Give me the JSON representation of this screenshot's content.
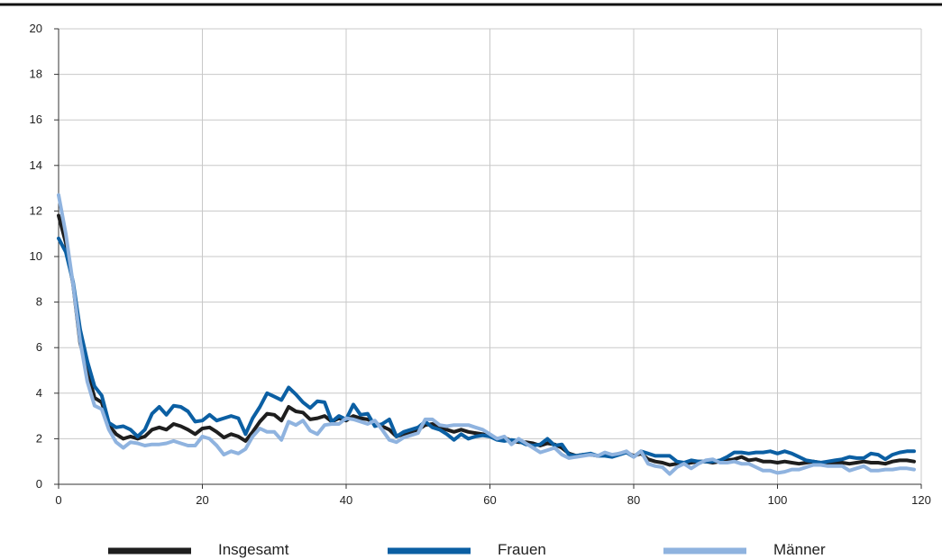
{
  "chart_data": {
    "type": "line",
    "title": "",
    "xlabel": "",
    "ylabel": "",
    "xlim": [
      0,
      120
    ],
    "ylim": [
      0,
      20
    ],
    "x_ticks": [
      "0",
      "20",
      "40",
      "60",
      "80",
      "100",
      "120"
    ],
    "y_ticks": [
      "0",
      "2",
      "4",
      "6",
      "8",
      "10",
      "12",
      "14",
      "16",
      "18",
      "20"
    ],
    "grid": true,
    "legend_position": "bottom",
    "x": [
      0,
      1,
      2,
      3,
      4,
      5,
      6,
      7,
      8,
      9,
      10,
      11,
      12,
      13,
      14,
      15,
      16,
      17,
      18,
      19,
      20,
      21,
      22,
      23,
      24,
      25,
      26,
      27,
      28,
      29,
      30,
      31,
      32,
      33,
      34,
      35,
      36,
      37,
      38,
      39,
      40,
      41,
      42,
      43,
      44,
      45,
      46,
      47,
      48,
      49,
      50,
      51,
      52,
      53,
      54,
      55,
      56,
      57,
      58,
      59,
      60,
      61,
      62,
      63,
      64,
      65,
      66,
      67,
      68,
      69,
      70,
      71,
      72,
      73,
      74,
      75,
      76,
      77,
      78,
      79,
      80,
      81,
      82,
      83,
      84,
      85,
      86,
      87,
      88,
      89,
      90,
      91,
      92,
      93,
      94,
      95,
      96,
      97,
      98,
      99,
      100,
      101,
      102,
      103,
      104,
      105,
      106,
      107,
      108,
      109,
      110,
      111,
      112,
      113,
      114,
      115,
      116,
      117,
      118,
      119
    ],
    "series": [
      {
        "name": "Insgesamt",
        "color": "#1e1e1e",
        "values": [
          11.8,
          10.6,
          8.8,
          6.2,
          5.0,
          3.8,
          3.6,
          2.6,
          2.2,
          2.0,
          2.1,
          2.0,
          2.1,
          2.4,
          2.5,
          2.4,
          2.65,
          2.55,
          2.4,
          2.2,
          2.45,
          2.5,
          2.3,
          2.05,
          2.2,
          2.1,
          1.9,
          2.3,
          2.75,
          3.1,
          3.05,
          2.8,
          3.4,
          3.2,
          3.15,
          2.85,
          2.9,
          3.0,
          2.75,
          2.9,
          2.8,
          3.0,
          2.9,
          2.85,
          2.7,
          2.55,
          2.4,
          2.1,
          2.2,
          2.3,
          2.4,
          2.6,
          2.65,
          2.5,
          2.4,
          2.3,
          2.4,
          2.3,
          2.25,
          2.2,
          2.1,
          2.0,
          2.05,
          1.9,
          1.85,
          1.85,
          1.8,
          1.7,
          1.8,
          1.75,
          1.6,
          1.35,
          1.25,
          1.3,
          1.3,
          1.25,
          1.3,
          1.25,
          1.35,
          1.4,
          1.25,
          1.35,
          1.1,
          1.0,
          0.95,
          0.85,
          0.9,
          0.9,
          0.95,
          1.0,
          1.0,
          0.95,
          1.0,
          1.05,
          1.1,
          1.2,
          1.05,
          1.1,
          1.0,
          1.0,
          0.95,
          1.0,
          0.95,
          0.9,
          0.95,
          1.0,
          0.95,
          0.9,
          0.95,
          0.95,
          0.9,
          0.95,
          1.0,
          0.95,
          0.95,
          0.9,
          1.0,
          1.05,
          1.05,
          1.0
        ]
      },
      {
        "name": "Frauen",
        "color": "#0b5fa3",
        "values": [
          10.8,
          10.2,
          8.9,
          6.8,
          5.4,
          4.3,
          3.9,
          2.7,
          2.5,
          2.55,
          2.4,
          2.1,
          2.4,
          3.1,
          3.4,
          3.05,
          3.45,
          3.4,
          3.2,
          2.75,
          2.8,
          3.05,
          2.8,
          2.9,
          3.0,
          2.9,
          2.2,
          2.9,
          3.4,
          4.0,
          3.85,
          3.7,
          4.25,
          3.95,
          3.6,
          3.35,
          3.65,
          3.6,
          2.75,
          3.0,
          2.85,
          3.5,
          3.05,
          3.1,
          2.55,
          2.65,
          2.85,
          2.1,
          2.3,
          2.4,
          2.5,
          2.75,
          2.5,
          2.4,
          2.2,
          1.95,
          2.2,
          2.0,
          2.1,
          2.15,
          2.1,
          1.95,
          1.9,
          1.95,
          1.9,
          1.75,
          1.7,
          1.75,
          2.0,
          1.7,
          1.75,
          1.3,
          1.25,
          1.3,
          1.35,
          1.25,
          1.25,
          1.2,
          1.3,
          1.4,
          1.2,
          1.45,
          1.35,
          1.25,
          1.25,
          1.25,
          1.0,
          0.95,
          1.05,
          1.0,
          1.0,
          1.0,
          1.05,
          1.2,
          1.4,
          1.4,
          1.35,
          1.4,
          1.4,
          1.45,
          1.35,
          1.45,
          1.35,
          1.2,
          1.05,
          1.0,
          0.95,
          1.0,
          1.05,
          1.1,
          1.2,
          1.15,
          1.15,
          1.35,
          1.3,
          1.1,
          1.3,
          1.4,
          1.45,
          1.45
        ]
      },
      {
        "name": "Männer",
        "color": "#8fb3df",
        "values": [
          12.7,
          11.0,
          8.8,
          6.3,
          4.5,
          3.45,
          3.3,
          2.4,
          1.85,
          1.6,
          1.85,
          1.8,
          1.7,
          1.75,
          1.75,
          1.8,
          1.9,
          1.8,
          1.7,
          1.7,
          2.1,
          2.0,
          1.7,
          1.3,
          1.45,
          1.35,
          1.55,
          2.1,
          2.45,
          2.3,
          2.3,
          1.95,
          2.75,
          2.6,
          2.8,
          2.35,
          2.2,
          2.6,
          2.65,
          2.65,
          2.9,
          2.85,
          2.75,
          2.65,
          2.8,
          2.4,
          1.95,
          1.85,
          2.05,
          2.15,
          2.25,
          2.85,
          2.85,
          2.6,
          2.55,
          2.6,
          2.6,
          2.6,
          2.5,
          2.4,
          2.2,
          2.0,
          2.1,
          1.75,
          2.0,
          1.8,
          1.6,
          1.4,
          1.5,
          1.6,
          1.3,
          1.15,
          1.2,
          1.25,
          1.3,
          1.25,
          1.4,
          1.3,
          1.35,
          1.45,
          1.2,
          1.45,
          0.9,
          0.8,
          0.75,
          0.45,
          0.75,
          0.9,
          0.7,
          0.9,
          1.05,
          1.1,
          0.95,
          0.95,
          1.0,
          0.9,
          0.9,
          0.75,
          0.6,
          0.6,
          0.5,
          0.55,
          0.65,
          0.65,
          0.75,
          0.85,
          0.85,
          0.8,
          0.8,
          0.8,
          0.6,
          0.7,
          0.8,
          0.6,
          0.6,
          0.65,
          0.65,
          0.7,
          0.7,
          0.65
        ]
      }
    ]
  }
}
